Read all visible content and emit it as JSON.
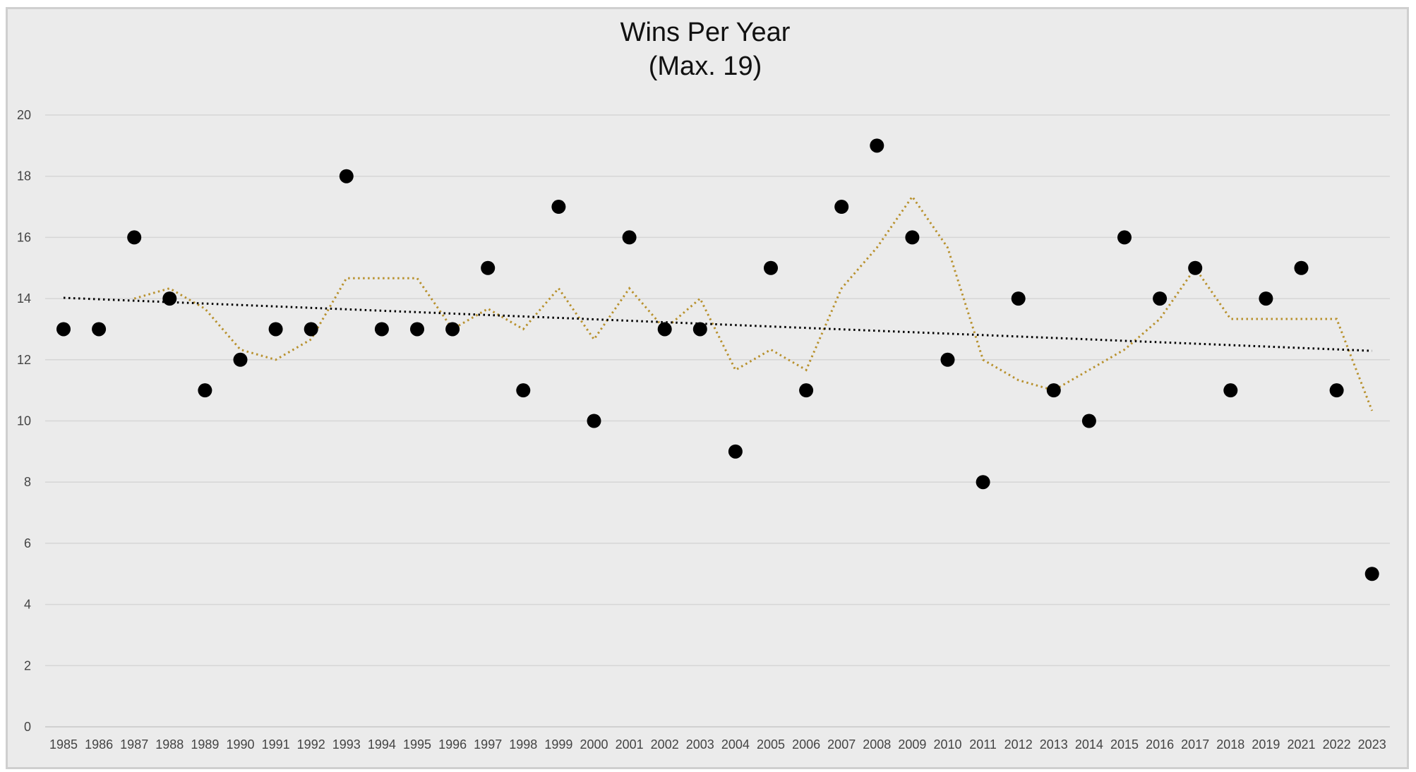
{
  "chart_data": {
    "type": "scatter",
    "title": "Wins Per Year",
    "subtitle": "(Max. 19)",
    "xlabel": "",
    "ylabel": "",
    "ylim": [
      0,
      20
    ],
    "y_ticks": [
      0,
      2,
      4,
      6,
      8,
      10,
      12,
      14,
      16,
      18,
      20
    ],
    "grid": true,
    "legend": "none",
    "categories": [
      "1985",
      "1986",
      "1987",
      "1988",
      "1989",
      "1990",
      "1991",
      "1992",
      "1993",
      "1994",
      "1995",
      "1996",
      "1997",
      "1998",
      "1999",
      "2000",
      "2001",
      "2002",
      "2003",
      "2004",
      "2005",
      "2006",
      "2007",
      "2008",
      "2009",
      "2010",
      "2011",
      "2012",
      "2013",
      "2014",
      "2015",
      "2016",
      "2017",
      "2018",
      "2019",
      "2021",
      "2022",
      "2023"
    ],
    "series": [
      {
        "kind": "points",
        "color": "#000000",
        "values": [
          13,
          13,
          16,
          14,
          11,
          12,
          13,
          13,
          18,
          13,
          13,
          13,
          15,
          11,
          17,
          10,
          16,
          13,
          13,
          9,
          15,
          11,
          17,
          19,
          16,
          12,
          8,
          14,
          11,
          10,
          16,
          14,
          15,
          11,
          14,
          15,
          11,
          5
        ]
      },
      {
        "kind": "moving-average-trendline",
        "period": 3,
        "color": "#b8912e",
        "style": "dotted"
      },
      {
        "kind": "linear-trendline",
        "color": "#000000",
        "style": "dotted"
      }
    ]
  }
}
